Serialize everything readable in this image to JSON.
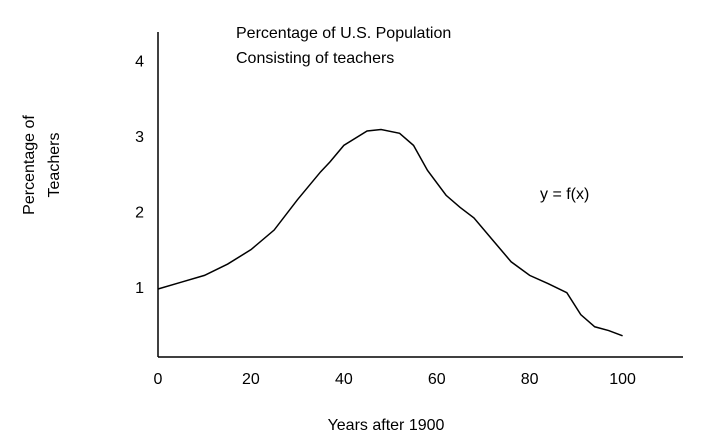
{
  "chart_data": {
    "type": "line",
    "title": [
      "Percentage of U.S. Population",
      "Consisting of teachers"
    ],
    "annotation": "y = f(x)",
    "x_label": "Years after 1900",
    "y_label": [
      "Percentage of",
      "Teachers"
    ],
    "x": [
      0,
      5,
      10,
      15,
      20,
      25,
      30,
      35,
      37,
      40,
      45,
      48,
      52,
      55,
      58,
      62,
      65,
      68,
      72,
      76,
      80,
      84,
      88,
      91,
      94,
      97,
      100
    ],
    "series": [
      {
        "name": "y = f(x)",
        "color": "#000000",
        "values": [
          1.0,
          1.09,
          1.18,
          1.33,
          1.52,
          1.78,
          2.18,
          2.55,
          2.68,
          2.9,
          3.09,
          3.11,
          3.06,
          2.9,
          2.57,
          2.24,
          2.08,
          1.94,
          1.65,
          1.36,
          1.18,
          1.07,
          0.95,
          0.66,
          0.5,
          0.45,
          0.38
        ]
      }
    ],
    "xlim": [
      0,
      113
    ],
    "ylim": [
      0.1,
      4.4
    ],
    "xticks": [
      0,
      20,
      40,
      60,
      80,
      100
    ],
    "yticks": [
      1,
      2,
      3,
      4
    ],
    "grid": false
  }
}
